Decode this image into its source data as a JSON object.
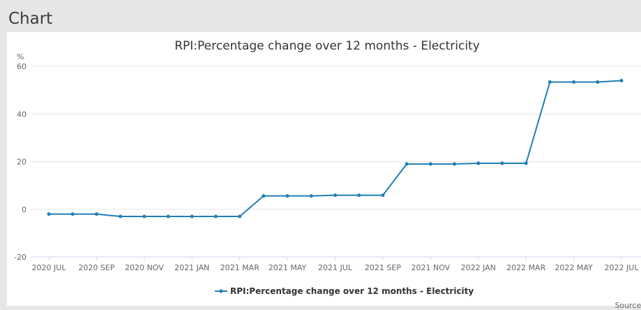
{
  "section": {
    "heading": "Chart"
  },
  "source_label": "Source:",
  "colors": {
    "series": "#1f7fb5",
    "grid": "#e6e6e6",
    "axis": "#ccd6eb"
  },
  "chart_data": {
    "type": "line",
    "title": "RPI:Percentage change over 12 months - Electricity",
    "ylabel": "%",
    "xlabel": "",
    "ylim": [
      -20,
      60
    ],
    "y_ticks": [
      -20,
      0,
      20,
      40,
      60
    ],
    "grid": true,
    "legend_position": "bottom-center",
    "x_tick_labels": [
      "2020 JUL",
      "2020 SEP",
      "2020 NOV",
      "2021 JAN",
      "2021 MAR",
      "2021 MAY",
      "2021 JUL",
      "2021 SEP",
      "2021 NOV",
      "2022 JAN",
      "2022 MAR",
      "2022 MAY",
      "2022 JUL"
    ],
    "x": [
      "2020 JUL",
      "2020 AUG",
      "2020 SEP",
      "2020 OCT",
      "2020 NOV",
      "2020 DEC",
      "2021 JAN",
      "2021 FEB",
      "2021 MAR",
      "2021 APR",
      "2021 MAY",
      "2021 JUN",
      "2021 JUL",
      "2021 AUG",
      "2021 SEP",
      "2021 OCT",
      "2021 NOV",
      "2021 DEC",
      "2022 JAN",
      "2022 FEB",
      "2022 MAR",
      "2022 APR",
      "2022 MAY",
      "2022 JUN",
      "2022 JUL"
    ],
    "series": [
      {
        "name": "RPI:Percentage change over 12 months - Electricity",
        "values": [
          -2.0,
          -2.0,
          -2.0,
          -3.0,
          -3.0,
          -3.0,
          -3.0,
          -3.0,
          -3.0,
          5.6,
          5.6,
          5.6,
          5.9,
          5.9,
          5.9,
          19.0,
          19.0,
          19.0,
          19.3,
          19.3,
          19.3,
          53.4,
          53.4,
          53.4,
          54.0
        ]
      }
    ]
  }
}
